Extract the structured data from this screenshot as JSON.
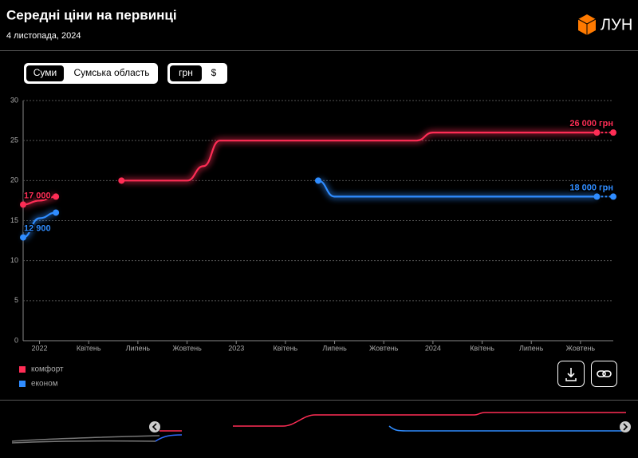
{
  "chart_data": {
    "type": "line",
    "title": "Середні ціни на первинці",
    "subtitle": "4 листопада, 2024",
    "categories": [
      null,
      "2022",
      null,
      null,
      "Квітень",
      null,
      null,
      "Липень",
      null,
      null,
      "Жовтень",
      null,
      null,
      "2023",
      null,
      null,
      "Квітень",
      null,
      null,
      "Липень",
      null,
      null,
      "Жовтень",
      null,
      null,
      "2024",
      null,
      null,
      "Квітень",
      null,
      null,
      "Липень",
      null,
      null,
      "Жовтень",
      null,
      null
    ],
    "series": [
      {
        "name": "комфорт",
        "color": "#ff2d55",
        "values": [
          17,
          17.5,
          18,
          null,
          null,
          null,
          20,
          20,
          20,
          20,
          20,
          21.8,
          25,
          25,
          25,
          25,
          25,
          25,
          25,
          25,
          25,
          25,
          25,
          25,
          25,
          26,
          26,
          26,
          26,
          26,
          26,
          26,
          26,
          26,
          26,
          26,
          26
        ],
        "value_labels": [
          "17 000",
          null,
          null,
          null,
          null,
          null,
          null,
          null,
          null,
          null,
          null,
          null,
          null,
          null,
          null,
          null,
          null,
          null,
          null,
          null,
          null,
          null,
          null,
          null,
          null,
          null,
          null,
          null,
          null,
          null,
          null,
          null,
          null,
          null,
          null,
          null,
          "26 000 грн"
        ]
      },
      {
        "name": "економ",
        "color": "#2f8cff",
        "values": [
          12.9,
          15.3,
          16,
          null,
          null,
          null,
          null,
          null,
          null,
          null,
          null,
          null,
          null,
          null,
          null,
          null,
          null,
          null,
          20,
          18,
          18,
          18,
          18,
          18,
          18,
          18,
          18,
          18,
          18,
          18,
          18,
          18,
          18,
          18,
          18,
          18,
          18
        ],
        "value_labels": [
          "12 900",
          null,
          null,
          null,
          null,
          null,
          null,
          null,
          null,
          null,
          null,
          null,
          null,
          null,
          null,
          null,
          null,
          null,
          null,
          null,
          null,
          null,
          null,
          null,
          null,
          null,
          null,
          null,
          null,
          null,
          null,
          null,
          null,
          null,
          null,
          null,
          "18 000 грн"
        ]
      }
    ],
    "ylim": [
      0,
      30
    ],
    "yticks": [
      0,
      5,
      10,
      15,
      20,
      25,
      30
    ],
    "grid": true
  },
  "logo": "ЛУН",
  "city_buttons": [
    "Суми",
    "Сумська область"
  ],
  "currency_buttons": [
    "грн",
    "$"
  ]
}
